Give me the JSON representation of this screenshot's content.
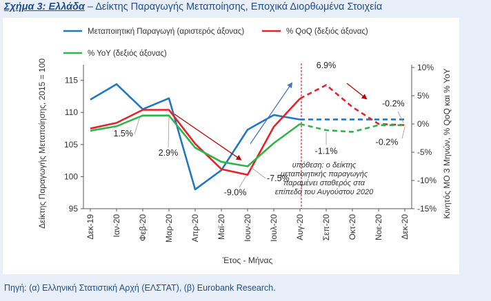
{
  "header": {
    "title_label": "Σχήμα 3: Ελλάδα",
    "title_rest": " – Δείκτης Παραγωγής Μεταποίησης, Εποχικά Διορθωμένα Στοιχεία"
  },
  "footer": {
    "source": "Πηγή: (α) Ελληνική Στατιστική Αρχή (ΕΛΣΤΑΤ), (β) Eurobank Research."
  },
  "chart_data": {
    "type": "line",
    "categories": [
      "Δεκ-19",
      "Ιαν-20",
      "Φεβ-20",
      "Μαρ-20",
      "Απρ-20",
      "Μαϊ-20",
      "Ιουν-20",
      "Ιουλ-20",
      "Αυγ-20",
      "Σεπ-20",
      "Οκτ-20",
      "Νοε-20",
      "Δεκ-20"
    ],
    "xlabel": "Έτος - Μήνας",
    "ylabel_left": "Δείκτης Παραγωγής Μεταποίησης, 2015 = 100",
    "ylabel_right": "Κινητός ΜΟ 3 Μηνών, % QoQ και % YoY",
    "ylim_left": [
      95,
      117
    ],
    "yticks_left": [
      95,
      100,
      105,
      110,
      115
    ],
    "ylim_right": [
      -15,
      10
    ],
    "yticks_right": [
      -15,
      -10,
      -5,
      0,
      5,
      10
    ],
    "yticks_right_labels": [
      "-15%",
      "-10%",
      "-5%",
      "0%",
      "5%",
      "10%"
    ],
    "legend_placement": "top",
    "grid": false,
    "forecast_start_index": 8,
    "series": [
      {
        "name": "Μεταποιητική Παραγωγή (αριστερός άξονας)",
        "axis": "left",
        "color": "#1f77c4",
        "values": [
          112.0,
          114.4,
          110.5,
          112.2,
          98.0,
          101.0,
          107.3,
          109.6,
          108.9,
          108.9,
          108.9,
          108.9,
          108.9
        ]
      },
      {
        "name": "% QoQ (δεξιός άξονας)",
        "axis": "right",
        "color": "#e8202a",
        "values": [
          -0.8,
          0.2,
          2.5,
          2.5,
          -3.5,
          -8.0,
          -9.0,
          -0.5,
          4.5,
          6.9,
          3.0,
          0.0,
          -0.2
        ]
      },
      {
        "name": "% YoY (δεξιός άξονας)",
        "axis": "right",
        "color": "#2fb34a",
        "values": [
          -1.2,
          -0.4,
          1.5,
          1.5,
          -4.2,
          -6.7,
          -7.5,
          -3.4,
          0.0,
          -1.1,
          -1.4,
          -0.2,
          -0.2
        ]
      }
    ],
    "annotations": [
      {
        "text": "1.5%",
        "color": "#222222"
      },
      {
        "text": "2.9%",
        "color": "#222222"
      },
      {
        "text": "-9.0%",
        "color": "#222222"
      },
      {
        "text": "-7.5%",
        "color": "#222222"
      },
      {
        "text": "6.9%",
        "color": "#222222"
      },
      {
        "text": "-0.2%",
        "color": "#222222"
      },
      {
        "text": "-1.1%",
        "color": "#222222"
      },
      {
        "text": "-0.2%",
        "color": "#222222"
      },
      {
        "text": "υπόθεση: ο δείκτης μεταποιητικής παραγωγής παραμένει σταθερός στα επίπεδα του Αυγούστου 2020",
        "color": "#333333"
      }
    ]
  }
}
